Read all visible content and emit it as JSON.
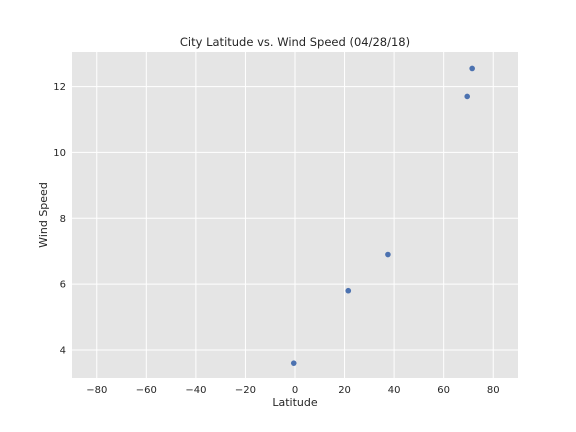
{
  "chart_data": {
    "type": "scatter",
    "title": "City Latitude vs. Wind Speed (04/28/18)",
    "xlabel": "Latitude",
    "ylabel": "Wind Speed",
    "xlim": [
      -90,
      90
    ],
    "ylim": [
      3.15,
      13.05
    ],
    "xticks": [
      -80,
      -60,
      -40,
      -20,
      0,
      20,
      40,
      60,
      80
    ],
    "xtick_labels": [
      "−80",
      "−60",
      "−40",
      "−20",
      "0",
      "20",
      "40",
      "60",
      "80"
    ],
    "yticks": [
      4,
      6,
      8,
      10,
      12
    ],
    "ytick_labels": [
      "4",
      "6",
      "8",
      "10",
      "12"
    ],
    "grid": true,
    "series": [
      {
        "points": [
          {
            "x": -0.5,
            "y": 3.6
          },
          {
            "x": 21.5,
            "y": 5.8
          },
          {
            "x": 37.5,
            "y": 6.9
          },
          {
            "x": 69.5,
            "y": 11.7
          },
          {
            "x": 71.5,
            "y": 12.55
          }
        ],
        "color": "#4c72b0"
      }
    ],
    "background_color": "#e5e5e5",
    "grid_color": "#ffffff"
  }
}
